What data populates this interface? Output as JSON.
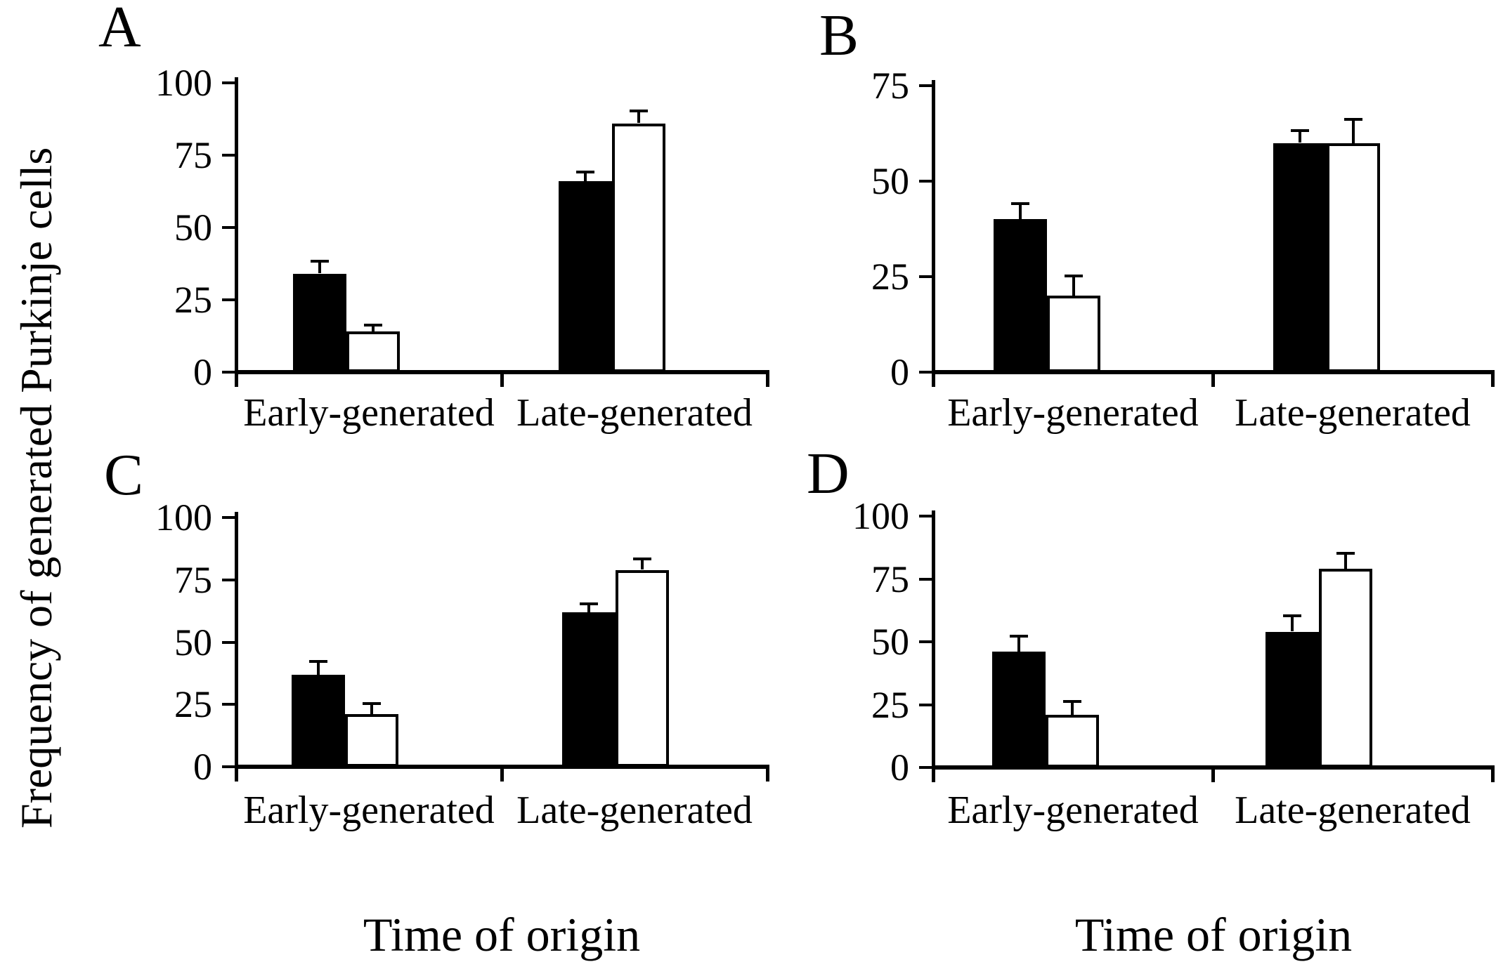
{
  "figure": {
    "y_axis_label": "Frequency of generated Purkinje cells",
    "x_axis_label": "Time of origin"
  },
  "chart_data": [
    {
      "type": "bar",
      "panel_label": "A",
      "categories": [
        "Early-generated",
        "Late-generated"
      ],
      "series": [
        {
          "name": "black",
          "color": "#000000",
          "values": [
            34,
            66
          ],
          "errors_plus": [
            4,
            3
          ]
        },
        {
          "name": "white",
          "color": "#ffffff",
          "values": [
            14,
            86
          ],
          "errors_plus": [
            2,
            4
          ]
        }
      ],
      "ylim": [
        0,
        100
      ],
      "yticks": [
        0,
        25,
        50,
        75,
        100
      ],
      "legend": "none",
      "grid": "off"
    },
    {
      "type": "bar",
      "panel_label": "B",
      "categories": [
        "Early-generated",
        "Late-generated"
      ],
      "series": [
        {
          "name": "black",
          "color": "#000000",
          "values": [
            40,
            60
          ],
          "errors_plus": [
            4,
            3
          ]
        },
        {
          "name": "white",
          "color": "#ffffff",
          "values": [
            20,
            60
          ],
          "errors_plus": [
            5,
            6
          ]
        }
      ],
      "ylim": [
        0,
        75
      ],
      "yticks": [
        0,
        25,
        50,
        75
      ],
      "legend": "none",
      "grid": "off"
    },
    {
      "type": "bar",
      "panel_label": "C",
      "categories": [
        "Early-generated",
        "Late-generated"
      ],
      "series": [
        {
          "name": "black",
          "color": "#000000",
          "values": [
            37,
            62
          ],
          "errors_plus": [
            5,
            3
          ]
        },
        {
          "name": "white",
          "color": "#ffffff",
          "values": [
            21,
            79
          ],
          "errors_plus": [
            4,
            4
          ]
        }
      ],
      "ylim": [
        0,
        100
      ],
      "yticks": [
        0,
        25,
        50,
        75,
        100
      ],
      "legend": "none",
      "grid": "off"
    },
    {
      "type": "bar",
      "panel_label": "D",
      "categories": [
        "Early-generated",
        "Late-generated"
      ],
      "series": [
        {
          "name": "black",
          "color": "#000000",
          "values": [
            46,
            54
          ],
          "errors_plus": [
            6,
            6
          ]
        },
        {
          "name": "white",
          "color": "#ffffff",
          "values": [
            21,
            79
          ],
          "errors_plus": [
            5,
            6
          ]
        }
      ],
      "ylim": [
        0,
        100
      ],
      "yticks": [
        0,
        25,
        50,
        75,
        100
      ],
      "legend": "none",
      "grid": "off"
    }
  ]
}
